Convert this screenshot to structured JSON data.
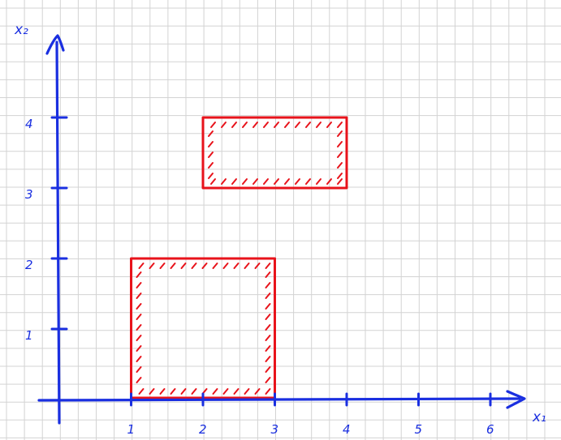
{
  "axes": {
    "x_label": "x₁",
    "y_label": "x₂",
    "x_ticks": [
      "1",
      "2",
      "3",
      "4",
      "5",
      "6"
    ],
    "y_ticks": [
      "1",
      "2",
      "3",
      "4"
    ],
    "color": "#1a2fe0"
  },
  "regions": [
    {
      "name": "lower-rect",
      "x": [
        1,
        3
      ],
      "y": [
        0,
        2
      ],
      "color": "#e8131b",
      "hatched_inside": true
    },
    {
      "name": "upper-rect",
      "x": [
        2,
        4
      ],
      "y": [
        3,
        4
      ],
      "color": "#e8131b",
      "hatched_inside": true
    }
  ],
  "grid": true
}
